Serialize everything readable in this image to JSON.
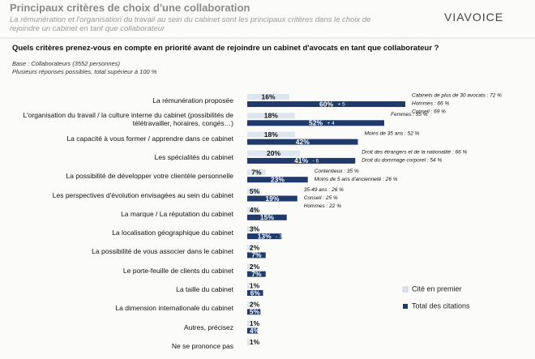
{
  "header": {
    "title": "Principaux critères de choix d'une collaboration",
    "subtitle": "La rémunération et l'organisation du travail au sein du cabinet sont les principaux critères dans le choix de rejoindre un cabinet en tant que collaborateur",
    "logo": "VIAVOICE",
    "question": "Quels critères prenez-vous en compte en priorité avant de rejoindre un cabinet d'avocats en tant que collaborateur ?",
    "base": [
      "Base : Collaborateurs (3552 personnes)",
      "Plusieurs réponses possibles, total supérieur à 100 %"
    ]
  },
  "chart_data": {
    "type": "bar",
    "orientation": "horizontal",
    "categories": [
      "La rémunération proposée",
      "L'organisation du travail / la culture interne du cabinet (possibilités de télétravailler, horaires, congés…)",
      "La capacité à vous former / apprendre dans ce cabinet",
      "Les spécialités du cabinet",
      "La possibilité de développer votre clientèle personnelle",
      "Les perspectives d'évolution envisagées au sein du cabinet",
      "La marque / La réputation du cabinet",
      "La localisation géographique du cabinet",
      "La possibilité de vous associer dans le cabinet",
      "Le porte-feuille de clients du cabinet",
      "La taille du cabinet",
      "La dimension internationale du cabinet",
      "Autres, précisez",
      "Ne se prononce pas"
    ],
    "series": [
      {
        "name": "Cité en premier",
        "color": "#dde5ef",
        "values": [
          16,
          18,
          18,
          20,
          7,
          5,
          4,
          3,
          2,
          2,
          1,
          2,
          1,
          1
        ],
        "value_labels": [
          "16%",
          "18%",
          "18%",
          "20%",
          "7%",
          "5%",
          "4%",
          "3%",
          "2%",
          "2%",
          "1%",
          "2%",
          "1%",
          "1%"
        ]
      },
      {
        "name": "Total des citations",
        "color": "#1f3a6b",
        "values": [
          60,
          52,
          42,
          41,
          23,
          19,
          15,
          13,
          7,
          7,
          6,
          5,
          4,
          null
        ],
        "value_labels": [
          "60%",
          "52%",
          "42%",
          "41%",
          "23%",
          "19%",
          "15%",
          "13%",
          "7%",
          "7%",
          "6%",
          "5%",
          "4%",
          null
        ],
        "delta_labels": [
          "+ 5",
          "+ 4",
          null,
          "- 6",
          null,
          null,
          null,
          "- 7",
          null,
          null,
          null,
          null,
          null,
          null
        ]
      }
    ],
    "notes": [
      [
        "Cabinets de plus de 30 avocats : 72 %",
        "Hommes : 66 %",
        "Conseil : 69 %"
      ],
      [
        "Femmes : 55 %"
      ],
      [
        "Moins de 35 ans : 52 %"
      ],
      [
        "Droit des étrangers et de la nationalité : 66 %",
        "Droit du dommage corporel : 54 %"
      ],
      [
        "Contentieux : 35 %",
        "Moins de 5 ans d'ancienneté : 26 %"
      ],
      [
        "35-49 ans : 26 %",
        "Conseil : 25 %",
        "Hommes : 22 %"
      ],
      [],
      [],
      [],
      [],
      [],
      [],
      [],
      []
    ],
    "legend": "right"
  }
}
